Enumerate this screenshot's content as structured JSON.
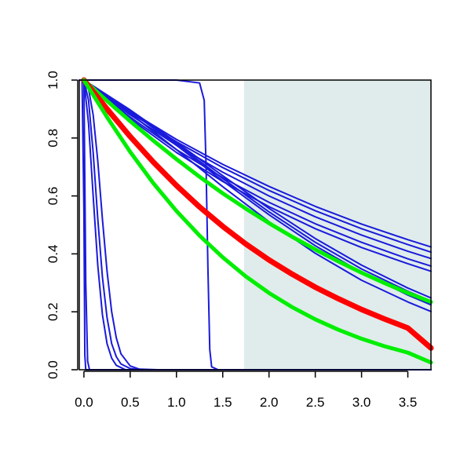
{
  "chart_data": {
    "type": "line",
    "title": "",
    "xlabel": "",
    "ylabel": "",
    "xlim": [
      -0.05,
      3.75
    ],
    "ylim": [
      0.0,
      1.0
    ],
    "x_ticks": [
      0.0,
      0.5,
      1.0,
      1.5,
      2.0,
      2.5,
      3.0,
      3.5
    ],
    "x_tick_labels": [
      "0.0",
      "0.5",
      "1.0",
      "1.5",
      "2.0",
      "2.5",
      "3.0",
      "3.5"
    ],
    "y_ticks": [
      0.0,
      0.2,
      0.4,
      0.6,
      0.8,
      1.0
    ],
    "y_tick_labels": [
      "0.0",
      "0.2",
      "0.4",
      "0.6",
      "0.8",
      "1.0"
    ],
    "grid": false,
    "shaded_region": {
      "x_from": 1.73,
      "x_to": 3.75,
      "color": "#dfeceb"
    },
    "colors": {
      "blue": "#1a1adb",
      "red": "#ff0000",
      "green": "#00ee00",
      "axis": "#000000"
    },
    "series": [
      {
        "color": "blue",
        "width": 2,
        "points": [
          [
            -0.05,
            1.0
          ],
          [
            0.0,
            1.0
          ],
          [
            0.5,
            0.892
          ],
          [
            1.0,
            0.795
          ],
          [
            1.5,
            0.709
          ],
          [
            2.0,
            0.633
          ],
          [
            2.5,
            0.564
          ],
          [
            3.0,
            0.503
          ],
          [
            3.5,
            0.449
          ],
          [
            3.75,
            0.424
          ]
        ]
      },
      {
        "color": "blue",
        "width": 2,
        "points": [
          [
            -0.05,
            1.0
          ],
          [
            0.0,
            1.0
          ],
          [
            0.5,
            0.887
          ],
          [
            1.0,
            0.787
          ],
          [
            1.5,
            0.698
          ],
          [
            2.0,
            0.619
          ],
          [
            2.5,
            0.549
          ],
          [
            3.0,
            0.487
          ],
          [
            3.5,
            0.432
          ],
          [
            3.75,
            0.406
          ]
        ]
      },
      {
        "color": "blue",
        "width": 2,
        "points": [
          [
            -0.05,
            1.0
          ],
          [
            0.0,
            1.0
          ],
          [
            0.5,
            0.88
          ],
          [
            1.0,
            0.775
          ],
          [
            1.5,
            0.682
          ],
          [
            2.0,
            0.6
          ],
          [
            2.5,
            0.528
          ],
          [
            3.0,
            0.465
          ],
          [
            3.5,
            0.409
          ],
          [
            3.75,
            0.384
          ]
        ]
      },
      {
        "color": "blue",
        "width": 2,
        "points": [
          [
            -0.05,
            1.0
          ],
          [
            0.0,
            1.0
          ],
          [
            0.5,
            0.872
          ],
          [
            1.0,
            0.76
          ],
          [
            1.5,
            0.663
          ],
          [
            2.0,
            0.578
          ],
          [
            2.5,
            0.504
          ],
          [
            3.0,
            0.44
          ],
          [
            3.5,
            0.383
          ],
          [
            3.75,
            0.358
          ]
        ]
      },
      {
        "color": "blue",
        "width": 2,
        "points": [
          [
            -0.05,
            1.0
          ],
          [
            0.0,
            1.0
          ],
          [
            0.5,
            0.866
          ],
          [
            1.0,
            0.75
          ],
          [
            1.5,
            0.65
          ],
          [
            2.0,
            0.563
          ],
          [
            2.5,
            0.487
          ],
          [
            3.0,
            0.422
          ],
          [
            3.5,
            0.366
          ],
          [
            3.75,
            0.34
          ]
        ]
      },
      {
        "color": "blue",
        "width": 2,
        "points": [
          [
            -0.05,
            1.0
          ],
          [
            0.0,
            1.0
          ],
          [
            0.5,
            0.895
          ],
          [
            1.0,
            0.78
          ],
          [
            1.5,
            0.66
          ],
          [
            2.0,
            0.545
          ],
          [
            2.5,
            0.44
          ],
          [
            3.0,
            0.348
          ],
          [
            3.5,
            0.271
          ],
          [
            3.75,
            0.237
          ]
        ]
      },
      {
        "color": "blue",
        "width": 2,
        "points": [
          [
            -0.05,
            1.0
          ],
          [
            0.0,
            1.0
          ],
          [
            0.5,
            0.893
          ],
          [
            1.0,
            0.775
          ],
          [
            1.5,
            0.652
          ],
          [
            2.0,
            0.535
          ],
          [
            2.5,
            0.428
          ],
          [
            3.0,
            0.336
          ],
          [
            3.5,
            0.258
          ],
          [
            3.75,
            0.224
          ]
        ]
      },
      {
        "color": "blue",
        "width": 2,
        "points": [
          [
            -0.05,
            1.0
          ],
          [
            0.0,
            1.0
          ],
          [
            0.5,
            0.897
          ],
          [
            1.0,
            0.785
          ],
          [
            1.5,
            0.67
          ],
          [
            2.0,
            0.557
          ],
          [
            2.5,
            0.453
          ],
          [
            3.0,
            0.361
          ],
          [
            3.5,
            0.282
          ],
          [
            3.75,
            0.248
          ]
        ]
      },
      {
        "color": "blue",
        "width": 2,
        "points": [
          [
            -0.05,
            1.0
          ],
          [
            0.0,
            1.0
          ],
          [
            0.5,
            0.885
          ],
          [
            1.0,
            0.76
          ],
          [
            1.5,
            0.632
          ],
          [
            2.0,
            0.511
          ],
          [
            2.5,
            0.402
          ],
          [
            3.0,
            0.309
          ],
          [
            3.5,
            0.234
          ],
          [
            3.75,
            0.201
          ]
        ]
      },
      {
        "color": "blue",
        "width": 2,
        "points": [
          [
            -0.05,
            1.0
          ],
          [
            0.0,
            1.0
          ],
          [
            1.0,
            1.0
          ],
          [
            1.25,
            0.99
          ],
          [
            1.3,
            0.93
          ],
          [
            1.32,
            0.7
          ],
          [
            1.34,
            0.35
          ],
          [
            1.36,
            0.07
          ],
          [
            1.38,
            0.01
          ],
          [
            1.45,
            0.0
          ],
          [
            3.75,
            0.0
          ]
        ]
      },
      {
        "color": "blue",
        "width": 2,
        "points": [
          [
            -0.05,
            1.0
          ],
          [
            0.0,
            1.0
          ],
          [
            0.05,
            0.97
          ],
          [
            0.1,
            0.88
          ],
          [
            0.15,
            0.72
          ],
          [
            0.2,
            0.52
          ],
          [
            0.25,
            0.34
          ],
          [
            0.3,
            0.2
          ],
          [
            0.35,
            0.11
          ],
          [
            0.4,
            0.055
          ],
          [
            0.5,
            0.013
          ],
          [
            0.6,
            0.002
          ],
          [
            0.8,
            0.0
          ],
          [
            3.75,
            0.0
          ]
        ]
      },
      {
        "color": "blue",
        "width": 2,
        "points": [
          [
            -0.05,
            1.0
          ],
          [
            0.0,
            1.0
          ],
          [
            0.05,
            0.93
          ],
          [
            0.1,
            0.75
          ],
          [
            0.15,
            0.52
          ],
          [
            0.2,
            0.32
          ],
          [
            0.25,
            0.18
          ],
          [
            0.3,
            0.09
          ],
          [
            0.35,
            0.045
          ],
          [
            0.4,
            0.02
          ],
          [
            0.5,
            0.004
          ],
          [
            0.6,
            0.0
          ],
          [
            3.75,
            0.0
          ]
        ]
      },
      {
        "color": "blue",
        "width": 2,
        "points": [
          [
            -0.05,
            1.0
          ],
          [
            0.0,
            1.0
          ],
          [
            0.05,
            0.85
          ],
          [
            0.1,
            0.6
          ],
          [
            0.15,
            0.36
          ],
          [
            0.2,
            0.19
          ],
          [
            0.25,
            0.09
          ],
          [
            0.3,
            0.04
          ],
          [
            0.35,
            0.015
          ],
          [
            0.45,
            0.0
          ],
          [
            3.75,
            0.0
          ]
        ]
      },
      {
        "color": "blue",
        "width": 2,
        "points": [
          [
            -0.05,
            1.0
          ],
          [
            -0.02,
            1.0
          ],
          [
            0.0,
            0.55
          ],
          [
            0.01,
            0.05
          ],
          [
            0.02,
            0.0
          ],
          [
            3.75,
            0.0
          ]
        ]
      },
      {
        "color": "blue",
        "width": 2,
        "points": [
          [
            -0.05,
            1.0
          ],
          [
            0.0,
            1.0
          ],
          [
            0.02,
            0.3
          ],
          [
            0.04,
            0.03
          ],
          [
            0.06,
            0.0
          ],
          [
            3.75,
            0.0
          ]
        ]
      },
      {
        "color": "green",
        "width": 5,
        "points": [
          [
            0.0,
            1.0
          ],
          [
            0.25,
            0.928
          ],
          [
            0.5,
            0.858
          ],
          [
            0.75,
            0.791
          ],
          [
            1.0,
            0.727
          ],
          [
            1.25,
            0.666
          ],
          [
            1.5,
            0.609
          ],
          [
            1.75,
            0.556
          ],
          [
            2.0,
            0.506
          ],
          [
            2.25,
            0.459
          ],
          [
            2.5,
            0.415
          ],
          [
            2.75,
            0.374
          ],
          [
            3.0,
            0.335
          ],
          [
            3.25,
            0.299
          ],
          [
            3.5,
            0.265
          ],
          [
            3.75,
            0.234
          ]
        ]
      },
      {
        "color": "red",
        "width": 7,
        "points": [
          [
            0.0,
            1.0
          ],
          [
            0.25,
            0.9
          ],
          [
            0.5,
            0.805
          ],
          [
            0.75,
            0.717
          ],
          [
            1.0,
            0.636
          ],
          [
            1.25,
            0.562
          ],
          [
            1.5,
            0.495
          ],
          [
            1.75,
            0.434
          ],
          [
            2.0,
            0.379
          ],
          [
            2.25,
            0.33
          ],
          [
            2.5,
            0.285
          ],
          [
            2.75,
            0.245
          ],
          [
            3.0,
            0.208
          ],
          [
            3.25,
            0.175
          ],
          [
            3.5,
            0.144
          ],
          [
            3.75,
            0.075
          ]
        ]
      },
      {
        "color": "green",
        "width": 5,
        "points": [
          [
            0.0,
            1.0
          ],
          [
            0.25,
            0.872
          ],
          [
            0.5,
            0.752
          ],
          [
            0.75,
            0.644
          ],
          [
            1.0,
            0.548
          ],
          [
            1.25,
            0.463
          ],
          [
            1.5,
            0.388
          ],
          [
            1.75,
            0.322
          ],
          [
            2.0,
            0.265
          ],
          [
            2.25,
            0.216
          ],
          [
            2.5,
            0.174
          ],
          [
            2.75,
            0.138
          ],
          [
            3.0,
            0.107
          ],
          [
            3.25,
            0.081
          ],
          [
            3.5,
            0.059
          ],
          [
            3.75,
            0.025
          ]
        ]
      }
    ]
  }
}
